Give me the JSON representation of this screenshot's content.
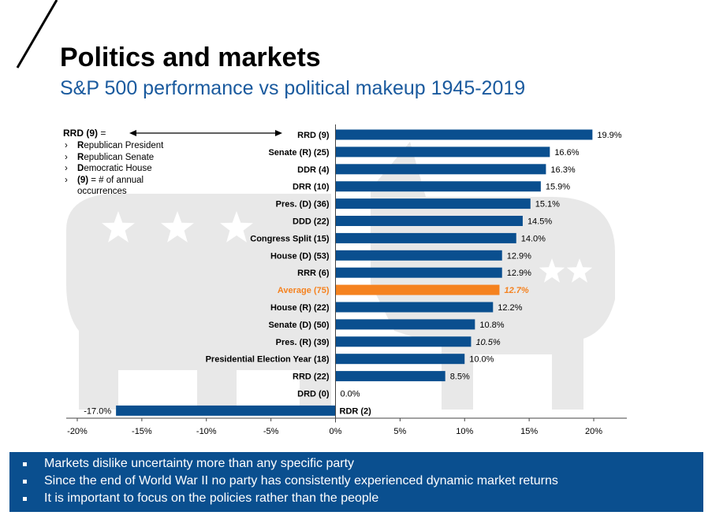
{
  "title": "Politics and markets",
  "subtitle": "S&P 500 performance vs political makeup 1945-2019",
  "legend": {
    "title": "RRD (9)",
    "equals": "=",
    "items": [
      {
        "initial": "R",
        "rest": "epublican President"
      },
      {
        "initial": "R",
        "rest": "epublican Senate"
      },
      {
        "initial": "D",
        "rest": "emocratic House"
      },
      {
        "initial": "(9)",
        "rest": " =  # of annual occurrences"
      }
    ]
  },
  "footer": {
    "bullets": [
      "Markets dislike uncertainty more than any specific party",
      "Since the end of World War II no party has consistently experienced dynamic market returns",
      "It is important to focus on the policies rather than the people"
    ]
  },
  "colors": {
    "bar": "#0a4f8f",
    "highlight": "#f5821f",
    "footer_bg": "#0a4f8f",
    "subtitle": "#1a5a9e",
    "background_art": "#d6d6d6"
  },
  "chart_data": {
    "type": "bar",
    "orientation": "horizontal",
    "title": "",
    "xlabel": "",
    "ylabel": "",
    "xlim": [
      -20,
      20
    ],
    "x_ticks": [
      "-20%",
      "-15%",
      "-10%",
      "-5%",
      "0%",
      "5%",
      "10%",
      "15%",
      "20%"
    ],
    "x_tick_values": [
      -20,
      -15,
      -10,
      -5,
      0,
      5,
      10,
      15,
      20
    ],
    "grid": false,
    "categories": [
      "RRD (9)",
      "Senate (R) (25)",
      "DDR (4)",
      "DRR (10)",
      "Pres. (D) (36)",
      "DDD (22)",
      "Congress Split (15)",
      "House (D) (53)",
      "RRR (6)",
      "Average (75)",
      "House (R) (22)",
      "Senate (D) (50)",
      "Pres. (R) (39)",
      "Presidential Election Year (18)",
      "RRD (22)",
      "DRD (0)",
      "RDR (2)"
    ],
    "values": [
      19.9,
      16.6,
      16.3,
      15.9,
      15.1,
      14.5,
      14.0,
      12.9,
      12.9,
      12.7,
      12.2,
      10.8,
      10.5,
      10.0,
      8.5,
      0.0,
      -17.0
    ],
    "value_labels": [
      "19.9%",
      "16.6%",
      "16.3%",
      "15.9%",
      "15.1%",
      "14.5%",
      "14.0%",
      "12.9%",
      "12.9%",
      "12.7%",
      "12.2%",
      "10.8%",
      "10.5%",
      "10.0%",
      "8.5%",
      "0.0%",
      "-17.0%"
    ],
    "highlight_index": 9,
    "italic_label_indices": [
      9,
      12
    ]
  }
}
